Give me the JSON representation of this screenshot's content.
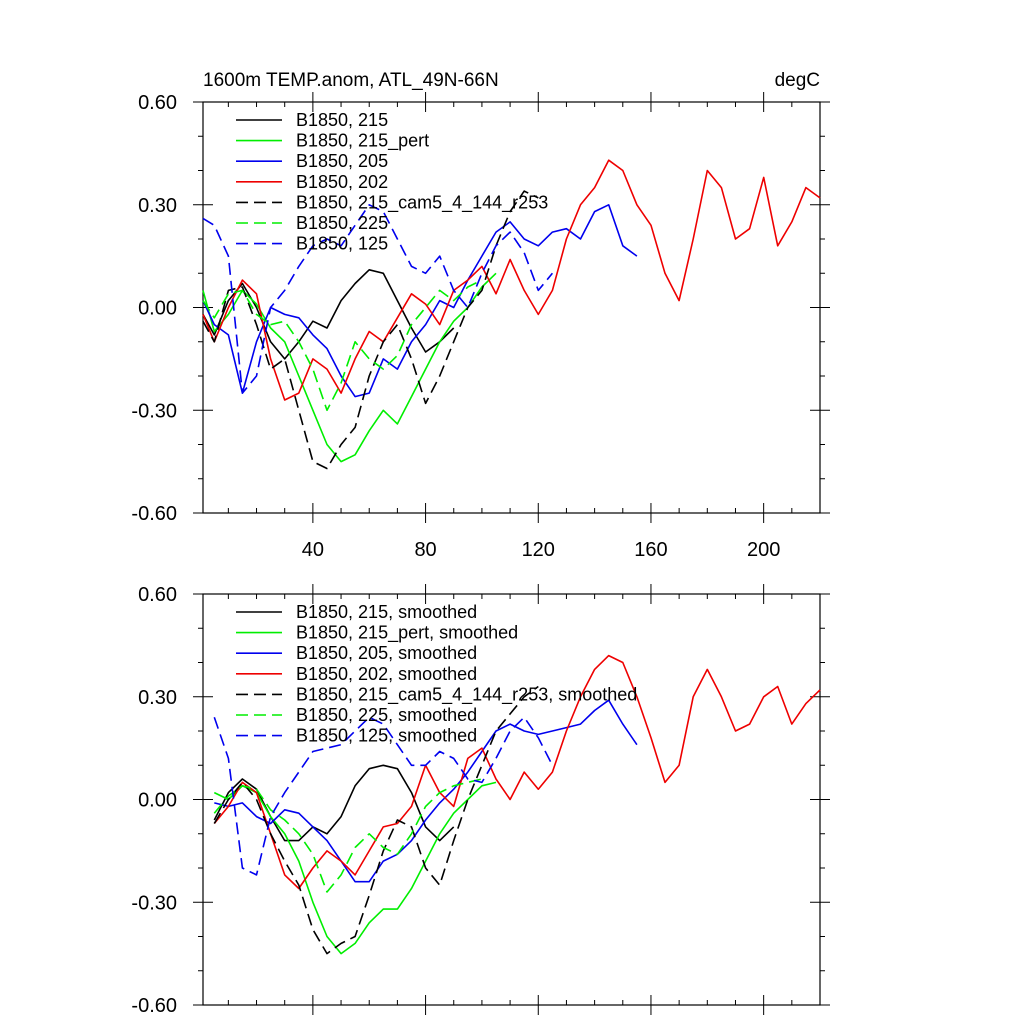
{
  "chart_data": [
    {
      "type": "line",
      "title": "1600m TEMP.anom, ATL_49N-66N",
      "units": "degC",
      "xlim": [
        1,
        220
      ],
      "ylim": [
        -0.6,
        0.6
      ],
      "x_ticks": [
        40,
        80,
        120,
        160,
        200
      ],
      "y_ticks": [
        -0.6,
        -0.3,
        0.0,
        0.3,
        0.6
      ],
      "y_tick_labels": [
        "-0.60",
        "-0.30",
        "0.00",
        "0.30",
        "0.60"
      ],
      "legend_location": "top-left",
      "series": [
        {
          "name": "B1850, 215",
          "color": "#000000",
          "dash": "solid",
          "x": [
            1,
            5,
            10,
            15,
            20,
            25,
            30,
            35,
            40,
            45,
            50,
            55,
            60,
            65,
            70,
            75,
            80,
            85,
            90
          ],
          "y": [
            -0.02,
            -0.08,
            0.02,
            0.07,
            0.0,
            -0.1,
            -0.15,
            -0.1,
            -0.04,
            -0.06,
            0.02,
            0.07,
            0.11,
            0.1,
            0.02,
            -0.06,
            -0.13,
            -0.1,
            -0.06
          ]
        },
        {
          "name": "B1850, 215_pert",
          "color": "#00ee00",
          "dash": "solid",
          "x": [
            1,
            5,
            10,
            15,
            20,
            25,
            30,
            35,
            40,
            45,
            50,
            55,
            60,
            65,
            70,
            75,
            80,
            85,
            90,
            95,
            100,
            105
          ],
          "y": [
            0.05,
            -0.07,
            -0.02,
            0.05,
            0.01,
            -0.06,
            -0.1,
            -0.2,
            -0.3,
            -0.4,
            -0.45,
            -0.43,
            -0.36,
            -0.3,
            -0.34,
            -0.26,
            -0.18,
            -0.1,
            -0.04,
            0.0,
            0.06,
            0.1
          ]
        },
        {
          "name": "B1850, 205",
          "color": "#0000ee",
          "dash": "solid",
          "x": [
            1,
            5,
            10,
            15,
            20,
            25,
            30,
            35,
            40,
            45,
            50,
            55,
            60,
            65,
            70,
            75,
            80,
            85,
            90,
            95,
            100,
            105,
            110,
            115,
            120,
            125,
            130,
            135,
            140,
            145,
            150,
            155
          ],
          "y": [
            0.02,
            -0.05,
            -0.08,
            -0.25,
            -0.1,
            0.0,
            -0.02,
            -0.03,
            -0.08,
            -0.12,
            -0.2,
            -0.26,
            -0.25,
            -0.15,
            -0.18,
            -0.1,
            -0.05,
            0.02,
            0.0,
            0.08,
            0.15,
            0.22,
            0.25,
            0.2,
            0.18,
            0.22,
            0.23,
            0.2,
            0.28,
            0.3,
            0.18,
            0.15
          ]
        },
        {
          "name": "B1850, 202",
          "color": "#ee0000",
          "dash": "solid",
          "x": [
            1,
            5,
            10,
            15,
            20,
            25,
            30,
            35,
            40,
            45,
            50,
            55,
            60,
            65,
            70,
            75,
            80,
            85,
            90,
            95,
            100,
            105,
            110,
            115,
            120,
            125,
            130,
            135,
            140,
            145,
            150,
            155,
            160,
            165,
            170,
            175,
            180,
            185,
            190,
            195,
            200,
            205,
            210,
            215,
            220
          ],
          "y": [
            -0.02,
            -0.1,
            0.0,
            0.08,
            0.04,
            -0.15,
            -0.27,
            -0.25,
            -0.15,
            -0.18,
            -0.25,
            -0.15,
            -0.07,
            -0.1,
            -0.03,
            0.04,
            0.01,
            -0.05,
            0.05,
            0.08,
            0.12,
            0.04,
            0.14,
            0.05,
            -0.02,
            0.05,
            0.2,
            0.3,
            0.35,
            0.43,
            0.4,
            0.3,
            0.24,
            0.1,
            0.02,
            0.2,
            0.4,
            0.35,
            0.2,
            0.23,
            0.38,
            0.18,
            0.25,
            0.35,
            0.32
          ]
        },
        {
          "name": "B1850, 215_cam5_4_144_r253",
          "color": "#000000",
          "dash": "long",
          "x": [
            1,
            5,
            10,
            15,
            20,
            25,
            30,
            35,
            40,
            45,
            50,
            55,
            60,
            65,
            70,
            75,
            80,
            85,
            90,
            95,
            100,
            105,
            110,
            115,
            120
          ],
          "y": [
            -0.04,
            -0.1,
            0.05,
            0.06,
            -0.05,
            -0.18,
            -0.15,
            -0.3,
            -0.45,
            -0.47,
            -0.4,
            -0.35,
            -0.2,
            -0.1,
            -0.05,
            -0.15,
            -0.28,
            -0.2,
            -0.1,
            0.0,
            0.05,
            0.18,
            0.28,
            0.34,
            0.32
          ]
        },
        {
          "name": "B1850, 225",
          "color": "#00ee00",
          "dash": "long",
          "x": [
            1,
            5,
            10,
            15,
            20,
            25,
            30,
            35,
            40,
            45,
            50,
            55,
            60,
            65,
            70,
            75,
            80,
            85,
            90,
            95,
            100
          ],
          "y": [
            0.02,
            -0.03,
            0.04,
            0.05,
            -0.02,
            -0.05,
            -0.04,
            -0.1,
            -0.18,
            -0.3,
            -0.22,
            -0.1,
            -0.15,
            -0.18,
            -0.14,
            -0.05,
            0.0,
            0.05,
            0.02,
            0.06,
            0.08
          ]
        },
        {
          "name": "B1850, 125",
          "color": "#0000ee",
          "dash": "long",
          "x": [
            1,
            5,
            10,
            15,
            20,
            25,
            30,
            35,
            40,
            45,
            50,
            55,
            60,
            65,
            70,
            75,
            80,
            85,
            90,
            95,
            100,
            105,
            110,
            115,
            120,
            125
          ],
          "y": [
            0.26,
            0.24,
            0.15,
            -0.25,
            -0.2,
            0.0,
            0.05,
            0.12,
            0.18,
            0.2,
            0.18,
            0.24,
            0.3,
            0.28,
            0.2,
            0.12,
            0.1,
            0.15,
            0.05,
            0.0,
            0.1,
            0.18,
            0.22,
            0.16,
            0.05,
            0.1
          ]
        }
      ]
    },
    {
      "type": "line",
      "xlim": [
        1,
        220
      ],
      "ylim": [
        -0.6,
        0.6
      ],
      "x_ticks": [
        40,
        80,
        120,
        160,
        200
      ],
      "y_ticks": [
        -0.6,
        -0.3,
        0.0,
        0.3,
        0.6
      ],
      "y_tick_labels": [
        "-0.60",
        "-0.30",
        "0.00",
        "0.30",
        "0.60"
      ],
      "legend_location": "top-left",
      "series": [
        {
          "name": "B1850, 215, smoothed",
          "color": "#000000",
          "dash": "solid",
          "x": [
            5,
            10,
            15,
            20,
            25,
            30,
            35,
            40,
            45,
            50,
            55,
            60,
            65,
            70,
            75,
            80,
            85,
            90
          ],
          "y": [
            -0.06,
            0.02,
            0.06,
            0.03,
            -0.05,
            -0.12,
            -0.12,
            -0.08,
            -0.1,
            -0.05,
            0.04,
            0.09,
            0.1,
            0.09,
            0.02,
            -0.08,
            -0.12,
            -0.08
          ]
        },
        {
          "name": "B1850, 215_pert, smoothed",
          "color": "#00ee00",
          "dash": "solid",
          "x": [
            5,
            10,
            15,
            20,
            25,
            30,
            35,
            40,
            45,
            50,
            55,
            60,
            65,
            70,
            75,
            80,
            85,
            90,
            95,
            100,
            105
          ],
          "y": [
            0.02,
            0.0,
            0.04,
            0.02,
            -0.05,
            -0.1,
            -0.18,
            -0.3,
            -0.4,
            -0.45,
            -0.42,
            -0.36,
            -0.32,
            -0.32,
            -0.26,
            -0.18,
            -0.1,
            -0.04,
            0.0,
            0.04,
            0.05
          ]
        },
        {
          "name": "B1850, 205, smoothed",
          "color": "#0000ee",
          "dash": "solid",
          "x": [
            5,
            10,
            15,
            20,
            25,
            30,
            35,
            40,
            45,
            50,
            55,
            60,
            65,
            70,
            75,
            80,
            85,
            90,
            95,
            100,
            105,
            110,
            115,
            120,
            125,
            130,
            135,
            140,
            145,
            150,
            155
          ],
          "y": [
            -0.01,
            -0.02,
            -0.01,
            -0.05,
            -0.07,
            -0.03,
            -0.04,
            -0.08,
            -0.12,
            -0.18,
            -0.24,
            -0.24,
            -0.18,
            -0.16,
            -0.12,
            -0.06,
            -0.01,
            0.03,
            0.08,
            0.14,
            0.2,
            0.22,
            0.2,
            0.19,
            0.2,
            0.21,
            0.22,
            0.26,
            0.29,
            0.22,
            0.16
          ]
        },
        {
          "name": "B1850, 202, smoothed",
          "color": "#ee0000",
          "dash": "solid",
          "x": [
            5,
            10,
            15,
            20,
            25,
            30,
            35,
            40,
            45,
            50,
            55,
            60,
            65,
            70,
            75,
            80,
            85,
            90,
            95,
            100,
            105,
            110,
            115,
            120,
            125,
            130,
            135,
            140,
            145,
            150,
            155,
            160,
            165,
            170,
            175,
            180,
            185,
            190,
            195,
            200,
            205,
            210,
            215,
            220
          ],
          "y": [
            -0.07,
            -0.02,
            0.05,
            0.02,
            -0.1,
            -0.22,
            -0.26,
            -0.2,
            -0.15,
            -0.18,
            -0.22,
            -0.15,
            -0.08,
            -0.07,
            -0.02,
            0.1,
            0.02,
            -0.02,
            0.12,
            0.15,
            0.06,
            0.0,
            0.08,
            0.03,
            0.08,
            0.2,
            0.3,
            0.38,
            0.42,
            0.4,
            0.3,
            0.18,
            0.05,
            0.1,
            0.3,
            0.38,
            0.3,
            0.2,
            0.22,
            0.3,
            0.33,
            0.22,
            0.28,
            0.32
          ]
        },
        {
          "name": "B1850, 215_cam5_4_144_r253, smoothed",
          "color": "#000000",
          "dash": "long",
          "x": [
            5,
            10,
            15,
            20,
            25,
            30,
            35,
            40,
            45,
            50,
            55,
            60,
            65,
            70,
            75,
            80,
            85,
            90,
            95,
            100,
            105,
            110,
            115,
            120
          ],
          "y": [
            -0.07,
            0.0,
            0.05,
            0.0,
            -0.1,
            -0.18,
            -0.25,
            -0.38,
            -0.45,
            -0.42,
            -0.4,
            -0.28,
            -0.15,
            -0.06,
            -0.08,
            -0.2,
            -0.25,
            -0.12,
            0.0,
            0.1,
            0.2,
            0.25,
            0.3,
            0.33
          ]
        },
        {
          "name": "B1850, 225, smoothed",
          "color": "#00ee00",
          "dash": "long",
          "x": [
            5,
            10,
            15,
            20,
            25,
            30,
            35,
            40,
            45,
            50,
            55,
            60,
            65,
            70,
            75,
            80,
            85,
            90,
            95,
            100
          ],
          "y": [
            -0.04,
            0.01,
            0.04,
            0.03,
            -0.03,
            -0.06,
            -0.1,
            -0.16,
            -0.27,
            -0.22,
            -0.14,
            -0.1,
            -0.14,
            -0.16,
            -0.1,
            -0.02,
            0.02,
            0.04,
            0.05,
            0.06
          ]
        },
        {
          "name": "B1850, 125, smoothed",
          "color": "#0000ee",
          "dash": "long",
          "x": [
            5,
            10,
            15,
            20,
            25,
            30,
            35,
            40,
            45,
            50,
            55,
            60,
            65,
            70,
            75,
            80,
            85,
            90,
            95,
            100,
            105,
            110,
            115,
            120,
            125
          ],
          "y": [
            0.24,
            0.12,
            -0.2,
            -0.22,
            -0.05,
            0.02,
            0.08,
            0.14,
            0.15,
            0.16,
            0.2,
            0.24,
            0.22,
            0.16,
            0.1,
            0.1,
            0.14,
            0.12,
            0.06,
            0.05,
            0.12,
            0.2,
            0.24,
            0.18,
            0.1
          ]
        }
      ]
    }
  ]
}
